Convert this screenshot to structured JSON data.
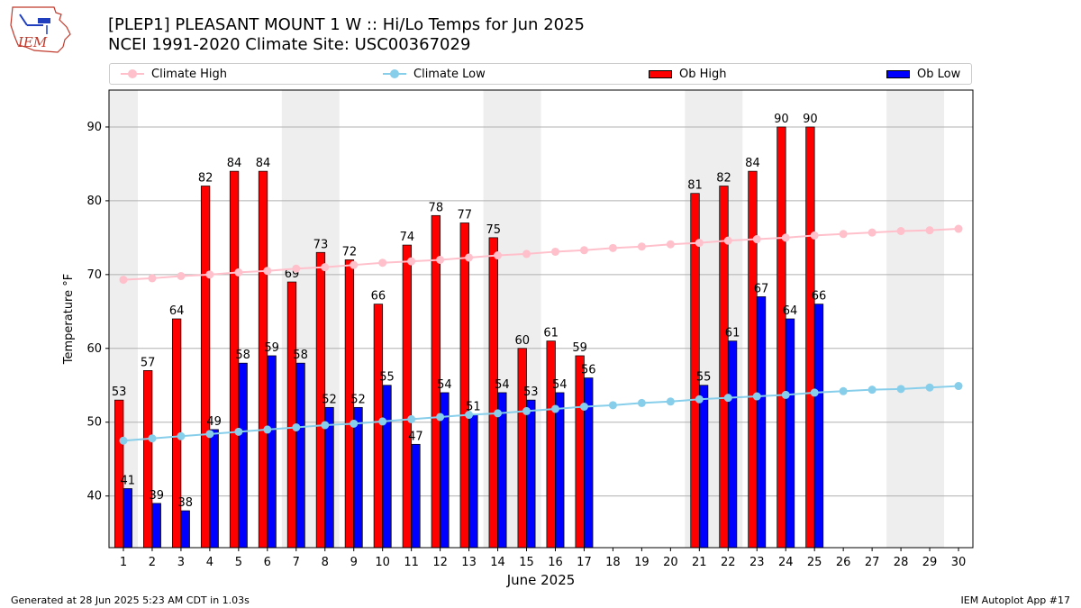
{
  "header": {
    "title_line1": "[PLEP1] PLEASANT MOUNT 1 W :: Hi/Lo Temps for Jun 2025",
    "title_line2": "NCEI 1991-2020 Climate Site: USC00367029",
    "logo_text": "IEM",
    "logo_icon": "iem-logo-icon"
  },
  "footer": {
    "generated": "Generated at 28 Jun 2025 5:23 AM CDT in 1.03s",
    "app": "IEM Autoplot App #17"
  },
  "colors": {
    "climate_high": "#ffc0cb",
    "climate_low": "#87ceeb",
    "ob_high": "#ff0000",
    "ob_low": "#0000ff",
    "weekend_band": "#eeeeee",
    "grid": "#b0b0b0"
  },
  "chart_data": {
    "type": "bar",
    "xlabel": "June 2025",
    "ylabel": "Temperature °F",
    "ylim": [
      33,
      95
    ],
    "xlim": [
      0.5,
      30.5
    ],
    "yticks": [
      40,
      50,
      60,
      70,
      80,
      90
    ],
    "grid": "horizontal",
    "legend_placement": "top",
    "days": [
      1,
      2,
      3,
      4,
      5,
      6,
      7,
      8,
      9,
      10,
      11,
      12,
      13,
      14,
      15,
      16,
      17,
      18,
      19,
      20,
      21,
      22,
      23,
      24,
      25,
      26,
      27,
      28,
      29,
      30
    ],
    "weekend_bands": [
      [
        0.5,
        1.5
      ],
      [
        6.5,
        8.5
      ],
      [
        13.5,
        15.5
      ],
      [
        20.5,
        22.5
      ],
      [
        27.5,
        29.5
      ]
    ],
    "series": [
      {
        "name": "Climate High",
        "kind": "line",
        "values": [
          69.3,
          69.5,
          69.8,
          70.0,
          70.3,
          70.5,
          70.8,
          71.0,
          71.3,
          71.6,
          71.8,
          72.0,
          72.3,
          72.6,
          72.8,
          73.1,
          73.3,
          73.6,
          73.8,
          74.1,
          74.3,
          74.6,
          74.8,
          75.0,
          75.3,
          75.5,
          75.7,
          75.9,
          76.0,
          76.2
        ]
      },
      {
        "name": "Climate Low",
        "kind": "line",
        "values": [
          47.5,
          47.8,
          48.1,
          48.4,
          48.7,
          49.0,
          49.3,
          49.6,
          49.8,
          50.1,
          50.4,
          50.7,
          51.0,
          51.2,
          51.5,
          51.8,
          52.1,
          52.3,
          52.6,
          52.8,
          53.1,
          53.3,
          53.5,
          53.7,
          54.0,
          54.2,
          54.4,
          54.5,
          54.7,
          54.9
        ]
      },
      {
        "name": "Ob High",
        "kind": "bar",
        "values": [
          53,
          57,
          64,
          82,
          84,
          84,
          69,
          73,
          72,
          66,
          74,
          78,
          77,
          75,
          60,
          61,
          59,
          null,
          null,
          null,
          81,
          82,
          84,
          90,
          90,
          null,
          null,
          null,
          null,
          null
        ]
      },
      {
        "name": "Ob Low",
        "kind": "bar",
        "values": [
          41,
          39,
          38,
          49,
          58,
          59,
          58,
          52,
          52,
          55,
          47,
          54,
          51,
          54,
          53,
          54,
          56,
          null,
          null,
          null,
          55,
          61,
          67,
          64,
          66,
          null,
          null,
          null,
          null,
          null
        ]
      }
    ]
  }
}
